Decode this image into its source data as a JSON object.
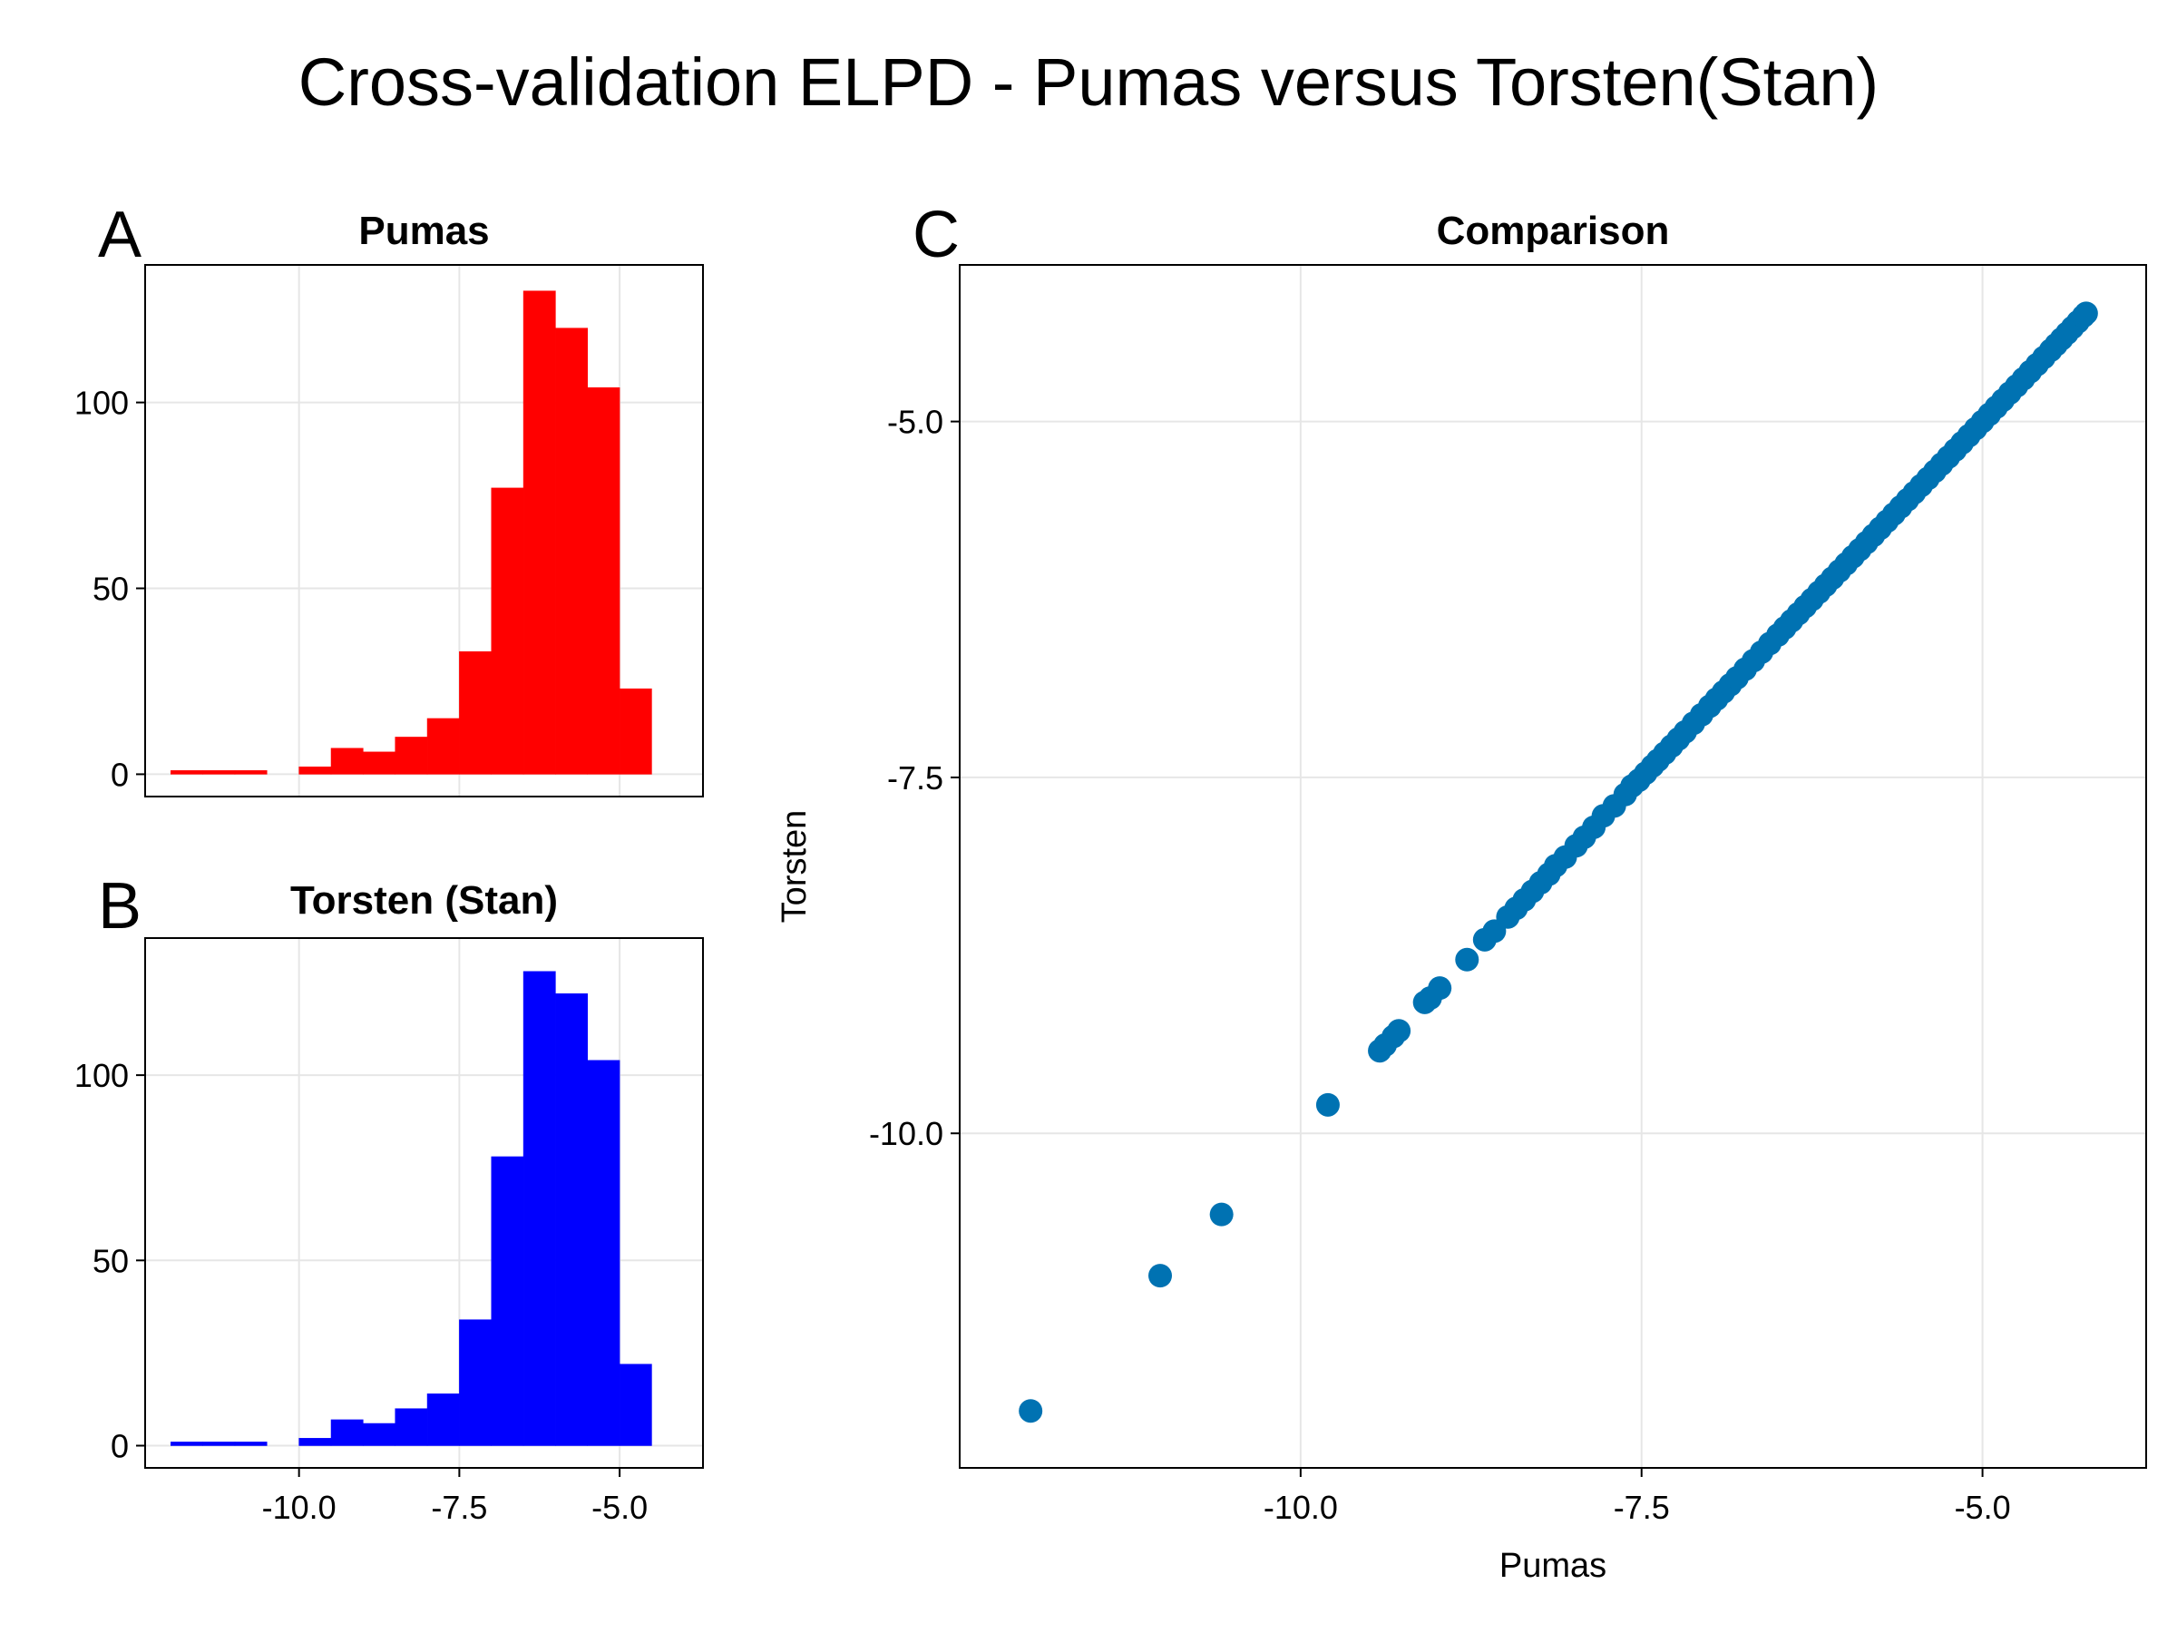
{
  "figure": {
    "title": "Cross-validation ELPD - Pumas versus Torsten(Stan)",
    "panel_labels": [
      "A",
      "B",
      "C"
    ]
  },
  "colors": {
    "pumas": "#ff0000",
    "torsten": "#0000ff",
    "scatter": "#0072b2",
    "grid": "#e6e6e6"
  },
  "chart_data": [
    {
      "type": "bar",
      "title": "Pumas",
      "xlim": [
        -12.4,
        -3.7
      ],
      "ylim": [
        -6,
        137
      ],
      "bin_edges": [
        -12.0,
        -11.5,
        -11.0,
        -10.5,
        -10.0,
        -9.5,
        -9.0,
        -8.5,
        -8.0,
        -7.5,
        -7.0,
        -6.5,
        -6.0,
        -5.5,
        -5.0,
        -4.5
      ],
      "values": [
        1,
        1,
        1,
        0,
        2,
        7,
        6,
        10,
        15,
        33,
        77,
        130,
        120,
        104,
        23
      ],
      "xticks": [
        "-10.0",
        "-7.5",
        "-5.0"
      ],
      "yticks": [
        "0",
        "50",
        "100"
      ],
      "grid": true
    },
    {
      "type": "bar",
      "title": "Torsten (Stan)",
      "xlim": [
        -12.4,
        -3.7
      ],
      "ylim": [
        -6,
        137
      ],
      "bin_edges": [
        -12.0,
        -11.5,
        -11.0,
        -10.5,
        -10.0,
        -9.5,
        -9.0,
        -8.5,
        -8.0,
        -7.5,
        -7.0,
        -6.5,
        -6.0,
        -5.5,
        -5.0,
        -4.5
      ],
      "values": [
        1,
        1,
        1,
        0,
        2,
        7,
        6,
        10,
        14,
        34,
        78,
        128,
        122,
        104,
        22
      ],
      "xticks": [
        "-10.0",
        "-7.5",
        "-5.0"
      ],
      "yticks": [
        "0",
        "50",
        "100"
      ],
      "grid": true
    },
    {
      "type": "scatter",
      "title": "Comparison",
      "xlabel": "Pumas",
      "ylabel": "Torsten",
      "xlim": [
        -12.5,
        -3.8
      ],
      "ylim": [
        -12.35,
        -3.9
      ],
      "xticks": [
        "-10.0",
        "-7.5",
        "-5.0"
      ],
      "yticks": [
        "-5.0",
        "-7.5",
        "-10.0"
      ],
      "grid": true,
      "points": [
        [
          -11.98,
          -11.95
        ],
        [
          -11.03,
          -11.0
        ],
        [
          -10.58,
          -10.57
        ],
        [
          -9.8,
          -9.8
        ],
        [
          -9.42,
          -9.42
        ],
        [
          -9.38,
          -9.38
        ],
        [
          -9.32,
          -9.32
        ],
        [
          -9.28,
          -9.28
        ],
        [
          -9.09,
          -9.08
        ],
        [
          -9.05,
          -9.05
        ],
        [
          -8.98,
          -8.98
        ],
        [
          -8.78,
          -8.78
        ],
        [
          -8.65,
          -8.64
        ],
        [
          -8.58,
          -8.58
        ],
        [
          -8.48,
          -8.48
        ],
        [
          -8.42,
          -8.42
        ],
        [
          -8.36,
          -8.36
        ],
        [
          -8.3,
          -8.3
        ],
        [
          -8.24,
          -8.24
        ],
        [
          -8.18,
          -8.18
        ],
        [
          -8.13,
          -8.12
        ],
        [
          -8.06,
          -8.06
        ],
        [
          -7.98,
          -7.98
        ],
        [
          -7.92,
          -7.92
        ],
        [
          -7.85,
          -7.85
        ],
        [
          -7.78,
          -7.77
        ],
        [
          -7.7,
          -7.7
        ],
        [
          -7.62,
          -7.62
        ],
        [
          -7.57,
          -7.56
        ],
        [
          -7.52,
          -7.52
        ],
        [
          -7.47,
          -7.47
        ],
        [
          -7.42,
          -7.42
        ],
        [
          -7.38,
          -7.38
        ],
        [
          -7.33,
          -7.33
        ],
        [
          -7.28,
          -7.28
        ],
        [
          -7.23,
          -7.23
        ],
        [
          -7.18,
          -7.18
        ],
        [
          -7.12,
          -7.12
        ],
        [
          -7.06,
          -7.06
        ],
        [
          -7.0,
          -7.0
        ],
        [
          -6.95,
          -6.95
        ],
        [
          -6.9,
          -6.9
        ],
        [
          -6.85,
          -6.85
        ],
        [
          -6.8,
          -6.8
        ],
        [
          -6.74,
          -6.74
        ],
        [
          -6.68,
          -6.68
        ],
        [
          -6.62,
          -6.62
        ],
        [
          -6.56,
          -6.56
        ],
        [
          -6.5,
          -6.5
        ],
        [
          -6.45,
          -6.45
        ],
        [
          -6.4,
          -6.4
        ],
        [
          -6.35,
          -6.35
        ],
        [
          -6.3,
          -6.3
        ],
        [
          -6.25,
          -6.25
        ],
        [
          -6.2,
          -6.2
        ],
        [
          -6.15,
          -6.15
        ],
        [
          -6.1,
          -6.1
        ],
        [
          -6.05,
          -6.05
        ],
        [
          -6.0,
          -6.0
        ],
        [
          -5.95,
          -5.95
        ],
        [
          -5.9,
          -5.9
        ],
        [
          -5.85,
          -5.85
        ],
        [
          -5.8,
          -5.8
        ],
        [
          -5.75,
          -5.75
        ],
        [
          -5.7,
          -5.7
        ],
        [
          -5.65,
          -5.65
        ],
        [
          -5.6,
          -5.6
        ],
        [
          -5.55,
          -5.55
        ],
        [
          -5.5,
          -5.5
        ],
        [
          -5.45,
          -5.45
        ],
        [
          -5.4,
          -5.4
        ],
        [
          -5.35,
          -5.35
        ],
        [
          -5.3,
          -5.3
        ],
        [
          -5.25,
          -5.25
        ],
        [
          -5.2,
          -5.2
        ],
        [
          -5.15,
          -5.15
        ],
        [
          -5.1,
          -5.1
        ],
        [
          -5.05,
          -5.05
        ],
        [
          -5.0,
          -5.0
        ],
        [
          -4.95,
          -4.95
        ],
        [
          -4.9,
          -4.9
        ],
        [
          -4.85,
          -4.85
        ],
        [
          -4.8,
          -4.8
        ],
        [
          -4.75,
          -4.75
        ],
        [
          -4.7,
          -4.7
        ],
        [
          -4.65,
          -4.65
        ],
        [
          -4.6,
          -4.6
        ],
        [
          -4.55,
          -4.55
        ],
        [
          -4.5,
          -4.5
        ],
        [
          -4.46,
          -4.46
        ],
        [
          -4.42,
          -4.42
        ],
        [
          -4.38,
          -4.38
        ],
        [
          -4.34,
          -4.34
        ],
        [
          -4.3,
          -4.3
        ],
        [
          -4.26,
          -4.26
        ],
        [
          -4.24,
          -4.24
        ]
      ]
    }
  ]
}
